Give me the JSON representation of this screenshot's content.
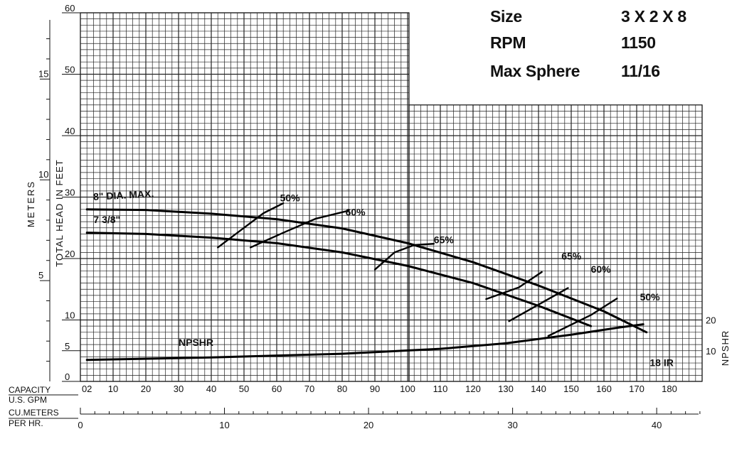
{
  "info_panel": {
    "rows": [
      {
        "label": "Size",
        "value": "3 X 2 X 8"
      },
      {
        "label": "RPM",
        "value": "1150"
      },
      {
        "label": "Max Sphere",
        "value": "11/16"
      }
    ]
  },
  "labels": {
    "meters": "METERS",
    "total_head": "TOTAL HEAD IN FEET",
    "npshr": "NPSHR",
    "capacity": "CAPACITY",
    "us_gpm": "U.S. GPM",
    "cu_meters": "CU.METERS",
    "per_hr": "PER HR."
  },
  "chart_data": {
    "type": "line",
    "title": "",
    "xlabel": "CAPACITY U.S. GPM",
    "ylabel": "TOTAL HEAD IN FEET",
    "xlim": [
      0,
      190
    ],
    "ylim": [
      0,
      60
    ],
    "x_ticks": [
      "02",
      "10",
      "20",
      "30",
      "40",
      "50",
      "60",
      "70",
      "80",
      "90",
      "100",
      "110",
      "120",
      "130",
      "140",
      "150",
      "160",
      "170",
      "180"
    ],
    "x_tick_values": [
      2,
      10,
      20,
      30,
      40,
      50,
      60,
      70,
      80,
      90,
      100,
      110,
      120,
      130,
      140,
      150,
      160,
      170,
      180
    ],
    "y_ticks": [
      "0",
      "5",
      "10",
      "20",
      "30",
      "40",
      "50",
      "60"
    ],
    "y_tick_values": [
      0,
      5,
      10,
      20,
      30,
      40,
      50,
      60
    ],
    "meters_ticks": [
      "5",
      "10",
      "15"
    ],
    "meters_tick_values": [
      5,
      10,
      15
    ],
    "npshr_ticks": [
      "10",
      "20"
    ],
    "npshr_tick_values": [
      10,
      20
    ],
    "cu_m_ticks": [
      "0",
      "10",
      "20",
      "30",
      "40"
    ],
    "cu_m_tick_values": [
      0,
      10,
      20,
      30,
      40
    ],
    "grid": true,
    "series": [
      {
        "name": "8\" DIA. MAX.",
        "x": [
          2,
          20,
          40,
          60,
          80,
          100,
          120,
          140,
          160,
          173
        ],
        "y": [
          28,
          27.9,
          27.3,
          26.4,
          24.9,
          22.5,
          19.4,
          15.6,
          11.4,
          8
        ]
      },
      {
        "name": "7 3/8\"",
        "x": [
          2,
          20,
          40,
          60,
          80,
          100,
          120,
          140,
          156
        ],
        "y": [
          24.2,
          24,
          23.4,
          22.5,
          21,
          18.8,
          16,
          12.3,
          9
        ]
      },
      {
        "name": "NPSHR",
        "x": [
          2,
          40,
          80,
          110,
          130,
          150,
          165,
          172
        ],
        "y": [
          3.5,
          3.9,
          4.5,
          5.3,
          6.2,
          7.6,
          8.8,
          9.3
        ]
      }
    ],
    "efficiency_curves": [
      {
        "name": "50%",
        "x": [
          42,
          49,
          56,
          62
        ],
        "y": [
          21.8,
          24.6,
          27.4,
          29
        ]
      },
      {
        "name": "60%",
        "x": [
          52,
          62,
          72,
          82
        ],
        "y": [
          21.8,
          24.2,
          26.5,
          27.8
        ]
      },
      {
        "name": "65%",
        "x": [
          90,
          96,
          102,
          108
        ],
        "y": [
          18.2,
          21,
          22.2,
          22.4
        ]
      },
      {
        "name": "65%",
        "x": [
          124,
          134,
          141
        ],
        "y": [
          13.4,
          15.3,
          17.8
        ]
      },
      {
        "name": "60%",
        "x": [
          131,
          141,
          149
        ],
        "y": [
          9.8,
          12.8,
          15.2
        ]
      },
      {
        "name": "50%",
        "x": [
          143,
          156,
          164
        ],
        "y": [
          7.4,
          10.8,
          13.5
        ]
      }
    ],
    "annotations": [
      {
        "text": "8\" DIA. MAX.",
        "x": 4,
        "y": 29.5,
        "rotate": -3
      },
      {
        "text": "7 3/8\"",
        "x": 4,
        "y": 25.8,
        "rotate": 0
      },
      {
        "text": "50%",
        "x": 61,
        "y": 29.3,
        "rotate": 0
      },
      {
        "text": "60%",
        "x": 81,
        "y": 27,
        "rotate": 0
      },
      {
        "text": "65%",
        "x": 108,
        "y": 22.5,
        "rotate": 0
      },
      {
        "text": "65%",
        "x": 147,
        "y": 19.8,
        "rotate": 0
      },
      {
        "text": "60%",
        "x": 156,
        "y": 17.7,
        "rotate": 0
      },
      {
        "text": "50%",
        "x": 171,
        "y": 13.2,
        "rotate": 0
      },
      {
        "text": "NPSHR",
        "x": 30,
        "y": 5.8,
        "rotate": 0
      },
      {
        "text": "18 IR",
        "x": 174,
        "y": 2.5,
        "rotate": 0
      }
    ]
  }
}
